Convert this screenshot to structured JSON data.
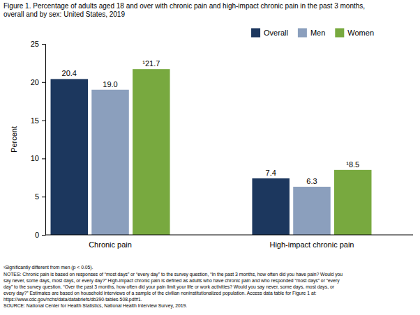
{
  "chart_data": {
    "type": "bar",
    "title": "Figure 1. Percentage of adults aged 18 and over with chronic pain and high-impact chronic pain in the past 3 months,\noverall and by sex: United States, 2019",
    "ylabel": "Percent",
    "categories": [
      "Chronic pain",
      "High-impact chronic pain"
    ],
    "series": [
      {
        "name": "Overall",
        "color": "#1c375e",
        "values": [
          20.4,
          7.4
        ],
        "value_labels": [
          "20.4",
          "7.4"
        ]
      },
      {
        "name": "Men",
        "color": "#8b9fbd",
        "values": [
          19.0,
          6.3
        ],
        "value_labels": [
          "19.0",
          "6.3"
        ]
      },
      {
        "name": "Women",
        "color": "#78a93f",
        "values": [
          21.7,
          8.5
        ],
        "value_labels": [
          "¹21.7",
          "¹8.5"
        ]
      }
    ],
    "ylim": [
      0,
      25
    ],
    "yticks": [
      0,
      5,
      10,
      15,
      20,
      25
    ],
    "grid": false,
    "legend": "upper right",
    "data_labels": true,
    "annotations": [
      "¹Significantly different from men (p < 0.05).",
      "NOTES: Chronic pain is based on responses of “most days” or “every day” to the survey question, “In the past 3 months, how often did you have pain? Would you",
      "say never, some days, most days, or every day?” High-impact chronic pain is defined as adults who have chronic pain and who responded “most days” or “every",
      "day” to the survey question, “Over the past 3 months, how often did your pain limit your life or work activities? Would you say never, some days, most days, or",
      "every day?” Estimates are based on household interviews of a sample of the civilian noninstitutionalized population. Access data table for Figure 1 at:",
      "https://www.cdc.gov/nchs/data/databriefs/db390-tables-508.pdf#1.",
      "SOURCE: National Center for Health Statistics, National Health Interview Survey, 2019."
    ]
  }
}
